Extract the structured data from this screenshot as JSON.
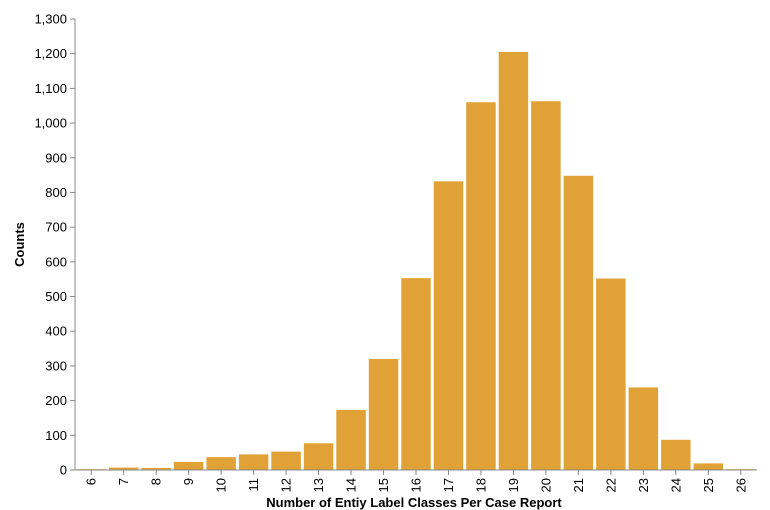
{
  "chart_data": {
    "type": "bar",
    "xlabel": "Number of Entiy Label Classes Per Case Report",
    "ylabel": "Counts",
    "ylim": [
      0,
      1300
    ],
    "yticks": [
      0,
      100,
      200,
      300,
      400,
      500,
      600,
      700,
      800,
      900,
      1000,
      1100,
      1200,
      1300
    ],
    "ytick_labels": [
      "0",
      "100",
      "200",
      "300",
      "400",
      "500",
      "600",
      "700",
      "800",
      "900",
      "1,000",
      "1,100",
      "1,200",
      "1,300"
    ],
    "categories": [
      "6",
      "7",
      "8",
      "9",
      "10",
      "11",
      "12",
      "13",
      "14",
      "15",
      "16",
      "17",
      "18",
      "19",
      "20",
      "21",
      "22",
      "23",
      "24",
      "25",
      "26"
    ],
    "values": [
      2,
      7,
      6,
      23,
      37,
      45,
      53,
      77,
      173,
      320,
      553,
      832,
      1060,
      1205,
      1063,
      848,
      552,
      238,
      87,
      19,
      2
    ],
    "bar_color": "#e0a136",
    "grid": false,
    "legend": "none"
  }
}
